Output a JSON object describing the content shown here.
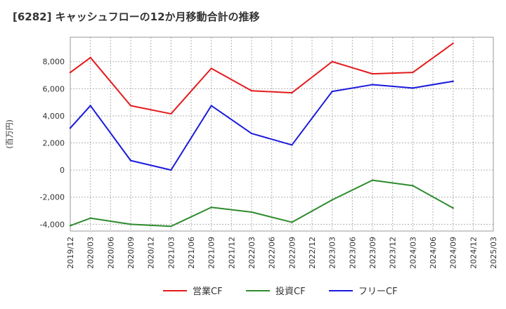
{
  "chart_data": {
    "type": "line",
    "title": "[6282]  キャッシュフローの12か月移動合計の推移",
    "ylabel": "(百万円)",
    "xlabel": "",
    "ylim": [
      -4500,
      9800
    ],
    "yticks": [
      -4000,
      -2000,
      0,
      2000,
      4000,
      6000,
      8000
    ],
    "ytick_labels": [
      "-4,000",
      "-2,000",
      "0",
      "2,000",
      "4,000",
      "6,000",
      "8,000"
    ],
    "categories": [
      "2019/12",
      "2020/03",
      "2020/06",
      "2020/09",
      "2020/12",
      "2021/03",
      "2021/06",
      "2021/09",
      "2021/12",
      "2022/03",
      "2022/06",
      "2022/09",
      "2022/12",
      "2023/03",
      "2023/06",
      "2023/09",
      "2023/12",
      "2024/03",
      "2024/06",
      "2024/09",
      "2024/12",
      "2025/03"
    ],
    "grid": true,
    "legend_position": "bottom",
    "series": [
      {
        "name": "営業CF",
        "color": "#e41a1c",
        "values": [
          7200,
          8300,
          null,
          4750,
          null,
          4150,
          null,
          7500,
          null,
          5850,
          null,
          5700,
          null,
          8000,
          null,
          7100,
          null,
          7200,
          null,
          9350,
          null,
          null
        ]
      },
      {
        "name": "投資CF",
        "color": "#2e8b2e",
        "values": [
          -4100,
          -3550,
          null,
          -4000,
          null,
          -4150,
          null,
          -2750,
          null,
          -3100,
          null,
          -3850,
          null,
          -2200,
          null,
          -750,
          null,
          -1150,
          null,
          -2800,
          null,
          null
        ]
      },
      {
        "name": "フリーCF",
        "color": "#1a1adc",
        "values": [
          3100,
          4750,
          null,
          700,
          null,
          0,
          null,
          4750,
          null,
          2700,
          null,
          1850,
          null,
          5800,
          null,
          6300,
          null,
          6050,
          null,
          6550,
          null,
          null
        ]
      }
    ]
  }
}
